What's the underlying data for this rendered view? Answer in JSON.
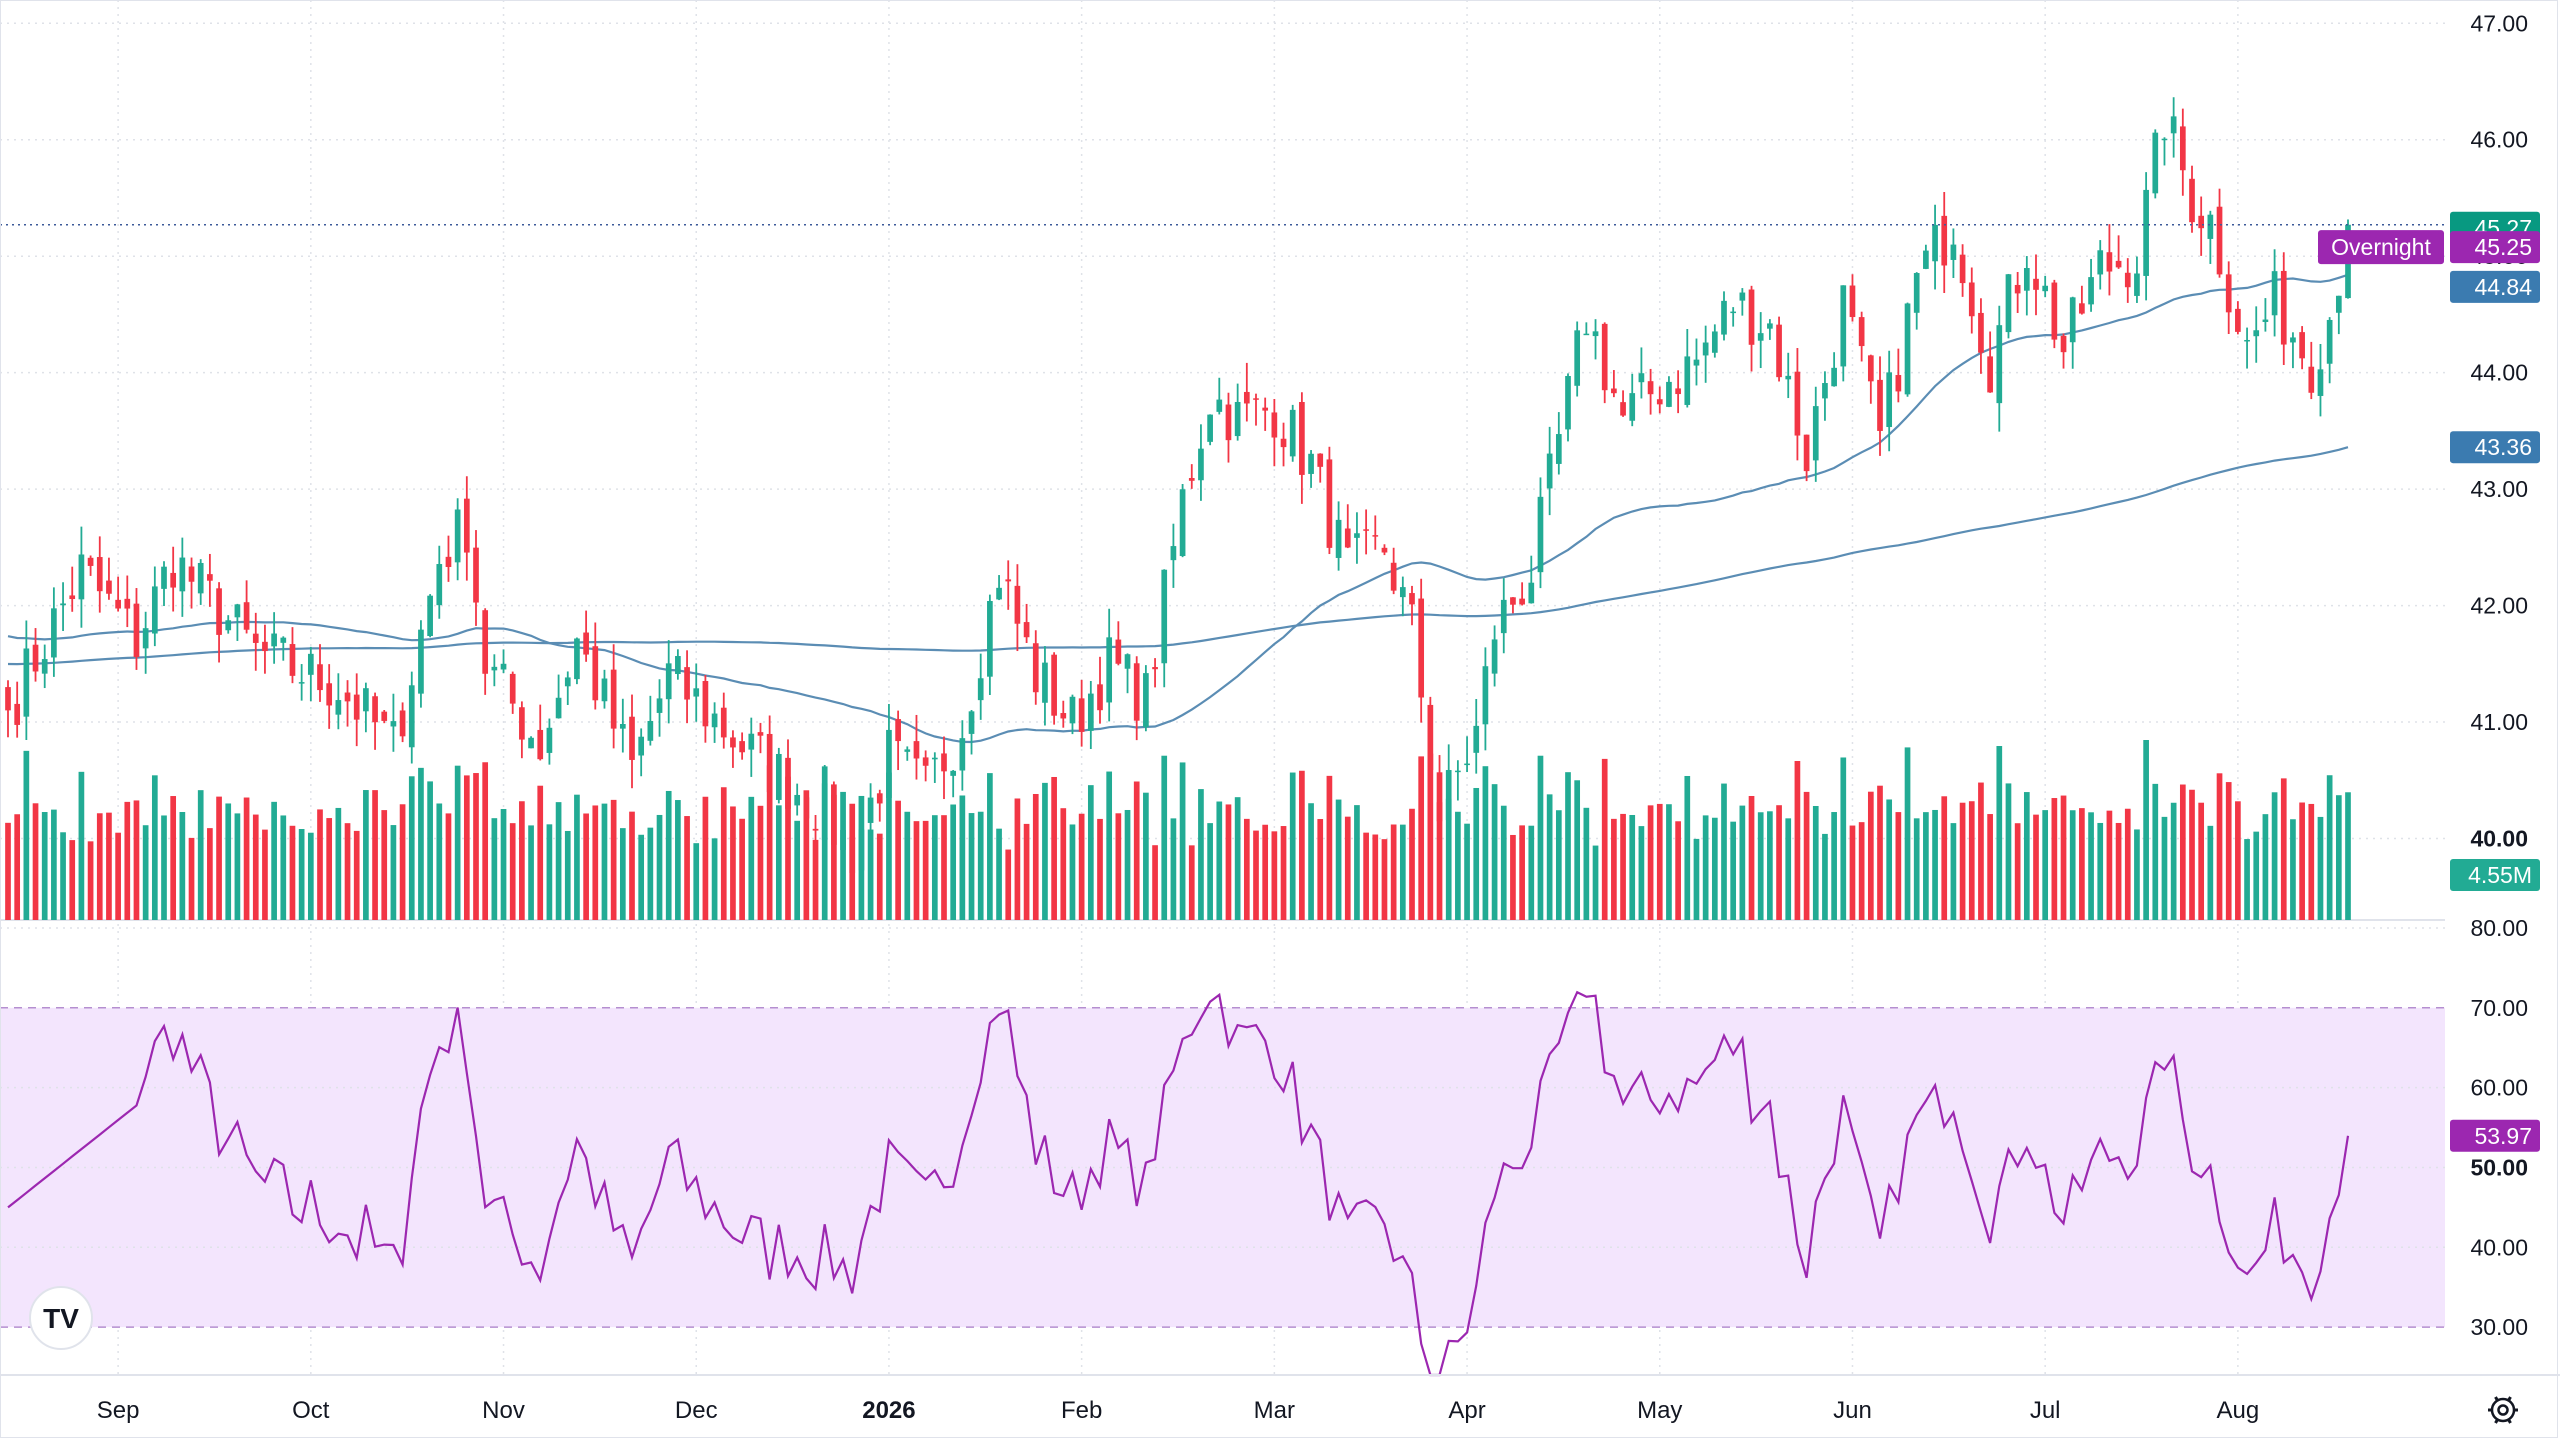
{
  "chart_data": {
    "type": "candlestick",
    "title": "",
    "x_labels": [
      "Sep",
      "Oct",
      "Nov",
      "Dec",
      "2026",
      "Feb",
      "Mar",
      "Apr",
      "May",
      "Jun",
      "Jul",
      "Aug"
    ],
    "x_label_month_index": [
      0,
      1,
      2,
      3,
      4,
      5,
      6,
      7,
      8,
      9,
      10,
      11
    ],
    "bars_per_month": 21,
    "total_bars": 256,
    "price_axis": {
      "ticks": [
        40,
        41,
        42,
        43,
        44,
        45,
        46,
        47
      ],
      "tick_labels": [
        "40.00",
        "41.00",
        "42.00",
        "43.00",
        "44.00",
        "45.00",
        "46.00",
        "47.00"
      ],
      "range": [
        39.3,
        47.2
      ]
    },
    "price_anchors": [
      [
        0,
        41.1
      ],
      [
        8,
        42.3
      ],
      [
        14,
        41.7
      ],
      [
        18,
        42.4
      ],
      [
        27,
        41.6
      ],
      [
        36,
        41.3
      ],
      [
        42,
        40.8
      ],
      [
        47,
        42.4
      ],
      [
        50,
        42.7
      ],
      [
        52,
        41.5
      ],
      [
        58,
        40.8
      ],
      [
        62,
        41.7
      ],
      [
        68,
        40.6
      ],
      [
        72,
        41.4
      ],
      [
        80,
        40.8
      ],
      [
        88,
        40.3
      ],
      [
        92,
        39.9
      ],
      [
        96,
        40.7
      ],
      [
        100,
        40.4
      ],
      [
        104,
        41.0
      ],
      [
        108,
        42.3
      ],
      [
        112,
        41.4
      ],
      [
        116,
        41.0
      ],
      [
        120,
        41.5
      ],
      [
        124,
        41.2
      ],
      [
        128,
        42.9
      ],
      [
        131,
        43.8
      ],
      [
        134,
        43.6
      ],
      [
        138,
        43.7
      ],
      [
        142,
        43.2
      ],
      [
        146,
        42.3
      ],
      [
        150,
        42.5
      ],
      [
        153,
        41.8
      ],
      [
        156,
        40.2
      ],
      [
        160,
        40.9
      ],
      [
        162,
        41.8
      ],
      [
        166,
        42.3
      ],
      [
        172,
        44.5
      ],
      [
        176,
        43.6
      ],
      [
        180,
        43.9
      ],
      [
        184,
        44.1
      ],
      [
        188,
        44.6
      ],
      [
        192,
        44.4
      ],
      [
        196,
        43.3
      ],
      [
        200,
        44.6
      ],
      [
        204,
        43.4
      ],
      [
        208,
        44.8
      ],
      [
        212,
        45.3
      ],
      [
        216,
        44.1
      ],
      [
        220,
        45.1
      ],
      [
        224,
        44.2
      ],
      [
        228,
        44.9
      ],
      [
        232,
        45.0
      ],
      [
        235,
        46.2
      ],
      [
        238,
        45.5
      ],
      [
        240,
        45.3
      ],
      [
        244,
        44.2
      ],
      [
        247,
        44.6
      ],
      [
        251,
        44.1
      ],
      [
        253,
        44.5
      ],
      [
        255,
        45.27
      ]
    ],
    "current_price": {
      "label": "45.27",
      "value": 45.27,
      "color": "#089981"
    },
    "overnight_price": {
      "label": "Overnight",
      "value_label": "45.25",
      "value": 45.25,
      "color": "#9c27b0"
    },
    "series": [
      {
        "name": "",
        "type": "moving-average",
        "length": 50,
        "last_value_label": "44.84",
        "last_value": 44.84,
        "color": "#5b8db4"
      },
      {
        "name": "",
        "type": "moving-average",
        "length": 200,
        "last_value_label": "43.36",
        "last_value": 43.36,
        "color": "#5b8db4"
      }
    ],
    "volume": {
      "last_value_label": "4.55M",
      "last_value": 4.55,
      "unit": "M",
      "up_color": "#22ab94",
      "down_color": "#f23645"
    },
    "rsi": {
      "ticks": [
        30,
        40,
        50,
        60,
        70,
        80
      ],
      "tick_labels": [
        "30.00",
        "40.00",
        "50.00",
        "60.00",
        "70.00",
        "80.00"
      ],
      "range": [
        24,
        81
      ],
      "band": [
        30,
        70
      ],
      "last_value_label": "53.97",
      "last_value": 53.97,
      "color": "#9c27b0",
      "band_color": "#f3e5fd"
    },
    "up_color": "#22ab94",
    "down_color": "#f23645",
    "grid": true,
    "legend": "none"
  },
  "ui": {
    "logo_text": "TV",
    "settings_icon": "gear-icon"
  }
}
